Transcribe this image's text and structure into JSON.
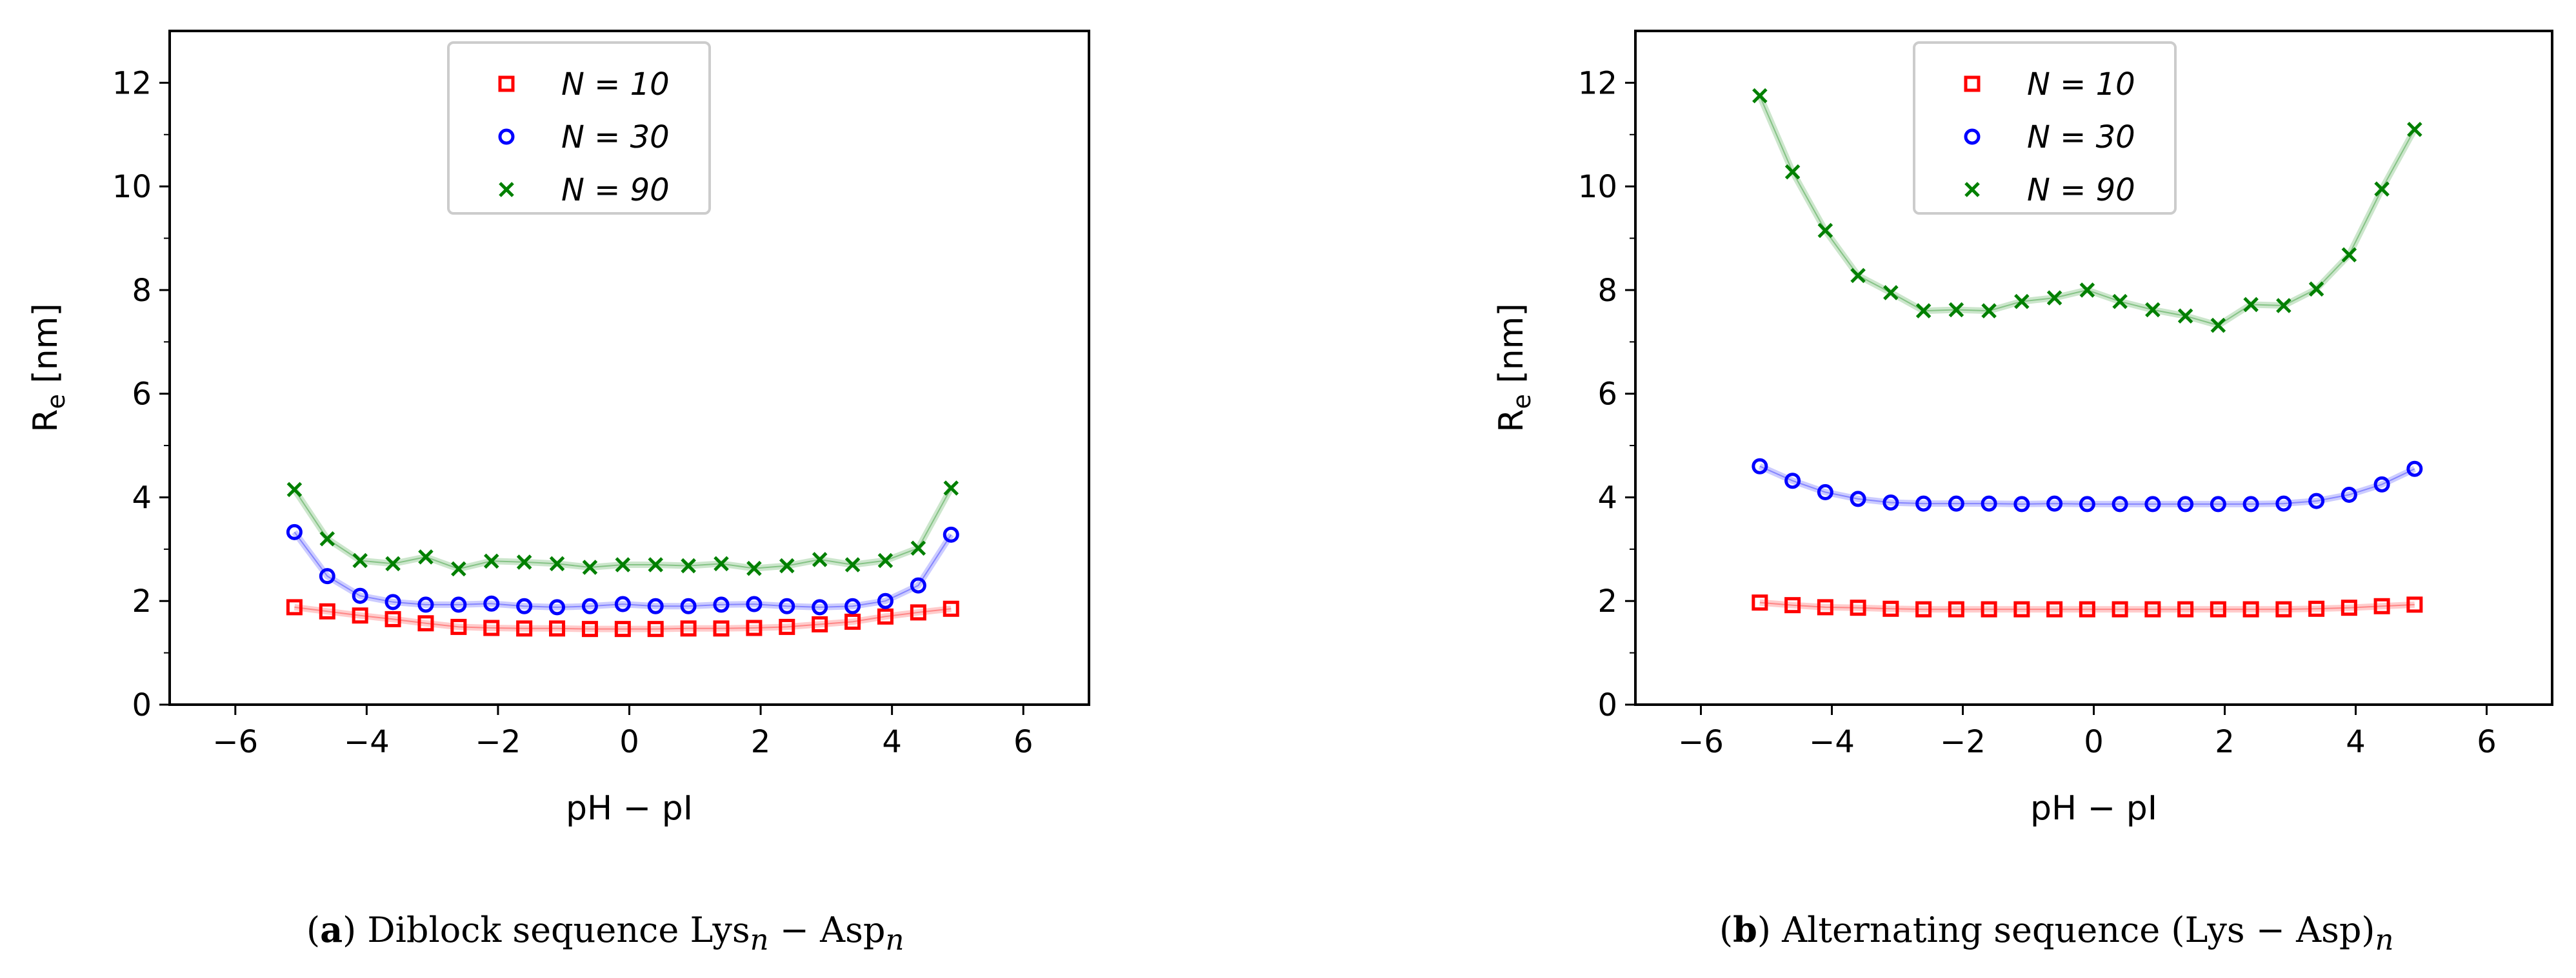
{
  "chart_data": [
    {
      "type": "scatter",
      "panel": "a",
      "caption_letter": "a",
      "caption_text": "Diblock sequence Lys",
      "caption_sub1": "n",
      "caption_mid": " − Asp",
      "caption_sub2": "n",
      "xlabel": "pH − pI",
      "ylabel": "R",
      "ylabel_sub": "e",
      "ylabel_unit": " [nm]",
      "xlim": [
        -7,
        7
      ],
      "ylim": [
        0,
        13
      ],
      "xticks": [
        -6,
        -4,
        -2,
        0,
        2,
        4,
        6
      ],
      "xtick_labels": [
        "−6",
        "−4",
        "−2",
        "0",
        "2",
        "4",
        "6"
      ],
      "yticks": [
        0,
        2,
        4,
        6,
        8,
        10,
        12
      ],
      "ytick_labels": [
        "0",
        "2",
        "4",
        "6",
        "8",
        "10",
        "12"
      ],
      "legend": {
        "placement": "upper-center",
        "entries": [
          "N = 10",
          "N = 30",
          "N = 90"
        ]
      },
      "x": [
        -5.1,
        -4.6,
        -4.1,
        -3.6,
        -3.1,
        -2.6,
        -2.1,
        -1.6,
        -1.1,
        -0.6,
        -0.1,
        0.4,
        0.9,
        1.4,
        1.9,
        2.4,
        2.9,
        3.4,
        3.9,
        4.4,
        4.9
      ],
      "series": [
        {
          "name": "N = 10",
          "marker": "square",
          "color": "#ff0000",
          "values": [
            1.88,
            1.8,
            1.72,
            1.65,
            1.57,
            1.5,
            1.48,
            1.47,
            1.47,
            1.46,
            1.46,
            1.46,
            1.47,
            1.47,
            1.48,
            1.5,
            1.55,
            1.6,
            1.7,
            1.78,
            1.85
          ]
        },
        {
          "name": "N = 30",
          "marker": "circle",
          "color": "#0000ff",
          "values": [
            3.33,
            2.48,
            2.1,
            1.98,
            1.93,
            1.93,
            1.95,
            1.9,
            1.88,
            1.9,
            1.94,
            1.9,
            1.9,
            1.93,
            1.94,
            1.9,
            1.88,
            1.9,
            2.0,
            2.3,
            3.28
          ]
        },
        {
          "name": "N = 90",
          "marker": "x",
          "color": "#008000",
          "values": [
            4.15,
            3.2,
            2.78,
            2.72,
            2.85,
            2.62,
            2.77,
            2.75,
            2.72,
            2.65,
            2.7,
            2.7,
            2.68,
            2.72,
            2.63,
            2.68,
            2.8,
            2.7,
            2.78,
            3.02,
            4.18
          ]
        }
      ]
    },
    {
      "type": "scatter",
      "panel": "b",
      "caption_letter": "b",
      "caption_text": "Alternating sequence (Lys − Asp)",
      "caption_sub1": "n",
      "caption_mid": "",
      "caption_sub2": "",
      "xlabel": "pH − pI",
      "ylabel": "R",
      "ylabel_sub": "e",
      "ylabel_unit": " [nm]",
      "xlim": [
        -7,
        7
      ],
      "ylim": [
        0,
        13
      ],
      "xticks": [
        -6,
        -4,
        -2,
        0,
        2,
        4,
        6
      ],
      "xtick_labels": [
        "−6",
        "−4",
        "−2",
        "0",
        "2",
        "4",
        "6"
      ],
      "yticks": [
        0,
        2,
        4,
        6,
        8,
        10,
        12
      ],
      "ytick_labels": [
        "0",
        "2",
        "4",
        "6",
        "8",
        "10",
        "12"
      ],
      "legend": {
        "placement": "upper-center",
        "entries": [
          "N = 10",
          "N = 30",
          "N = 90"
        ]
      },
      "x": [
        -5.1,
        -4.6,
        -4.1,
        -3.6,
        -3.1,
        -2.6,
        -2.1,
        -1.6,
        -1.1,
        -0.6,
        -0.1,
        0.4,
        0.9,
        1.4,
        1.9,
        2.4,
        2.9,
        3.4,
        3.9,
        4.4,
        4.9
      ],
      "series": [
        {
          "name": "N = 10",
          "marker": "square",
          "color": "#ff0000",
          "values": [
            1.97,
            1.92,
            1.88,
            1.87,
            1.85,
            1.84,
            1.84,
            1.84,
            1.84,
            1.84,
            1.84,
            1.84,
            1.84,
            1.84,
            1.84,
            1.84,
            1.84,
            1.85,
            1.87,
            1.9,
            1.93
          ]
        },
        {
          "name": "N = 30",
          "marker": "circle",
          "color": "#0000ff",
          "values": [
            4.6,
            4.32,
            4.1,
            3.97,
            3.9,
            3.88,
            3.88,
            3.88,
            3.87,
            3.88,
            3.87,
            3.87,
            3.87,
            3.87,
            3.87,
            3.87,
            3.88,
            3.93,
            4.05,
            4.25,
            4.55
          ]
        },
        {
          "name": "N = 90",
          "marker": "x",
          "color": "#008000",
          "values": [
            11.75,
            10.28,
            9.15,
            8.28,
            7.95,
            7.6,
            7.62,
            7.6,
            7.78,
            7.85,
            8.0,
            7.78,
            7.62,
            7.5,
            7.32,
            7.72,
            7.7,
            8.02,
            8.68,
            9.95,
            11.1
          ]
        }
      ]
    }
  ]
}
